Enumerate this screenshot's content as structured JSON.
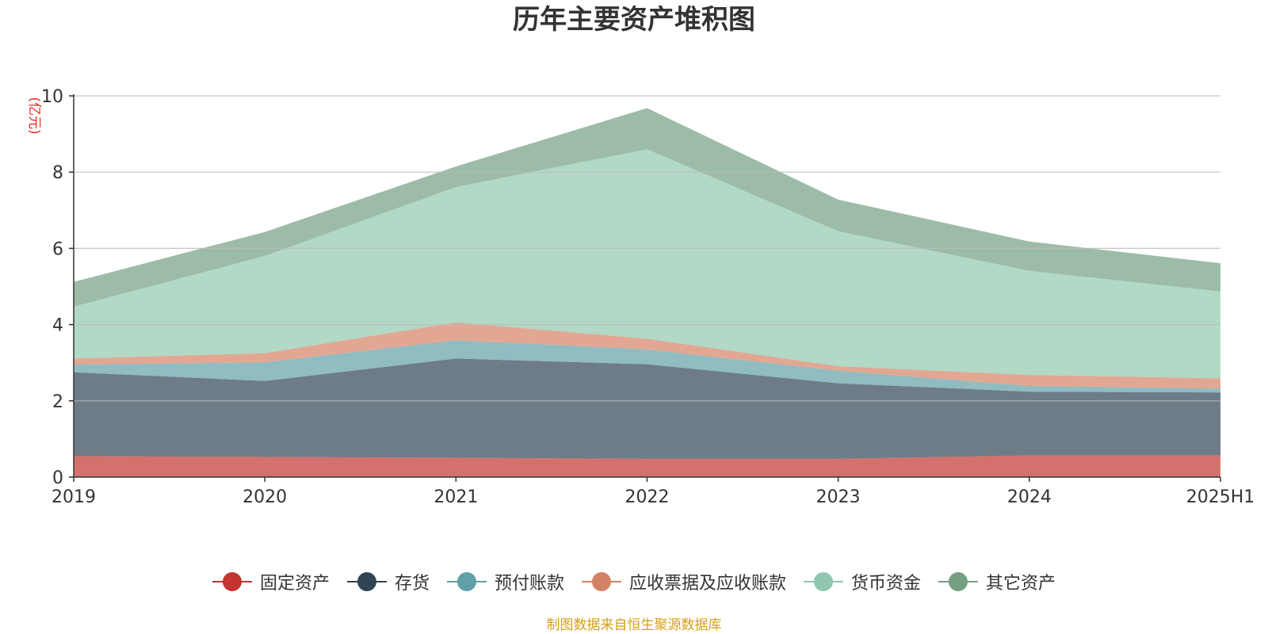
{
  "chart_data": {
    "type": "area",
    "stacked": true,
    "title": "历年主要资产堆积图",
    "ylabel": "(亿元)",
    "xlabel": "",
    "categories": [
      "2019",
      "2020",
      "2021",
      "2022",
      "2023",
      "2024",
      "2025H1"
    ],
    "ylim": [
      0,
      10
    ],
    "yticks": [
      0,
      2,
      4,
      6,
      8,
      10
    ],
    "grid": true,
    "legend_position": "bottom",
    "series": [
      {
        "name": "固定资产",
        "color": "#c23531",
        "values": [
          0.55,
          0.53,
          0.51,
          0.48,
          0.48,
          0.57,
          0.57
        ]
      },
      {
        "name": "存货",
        "color": "#2f4554",
        "values": [
          2.2,
          1.99,
          2.6,
          2.48,
          1.98,
          1.67,
          1.65
        ]
      },
      {
        "name": "预付账款",
        "color": "#61a0a8",
        "values": [
          0.2,
          0.49,
          0.48,
          0.39,
          0.33,
          0.15,
          0.1
        ]
      },
      {
        "name": "应收票据及应收账款",
        "color": "#d48265",
        "values": [
          0.16,
          0.24,
          0.47,
          0.28,
          0.12,
          0.29,
          0.27
        ]
      },
      {
        "name": "货币资金",
        "color": "#91c7ae",
        "values": [
          1.36,
          2.55,
          3.55,
          4.97,
          3.54,
          2.73,
          2.28
        ]
      },
      {
        "name": "其它资产",
        "color": "#749f83",
        "values": [
          0.65,
          0.63,
          0.54,
          1.08,
          0.83,
          0.77,
          0.74
        ]
      }
    ]
  },
  "source_note": "制图数据来自恒生聚源数据库"
}
